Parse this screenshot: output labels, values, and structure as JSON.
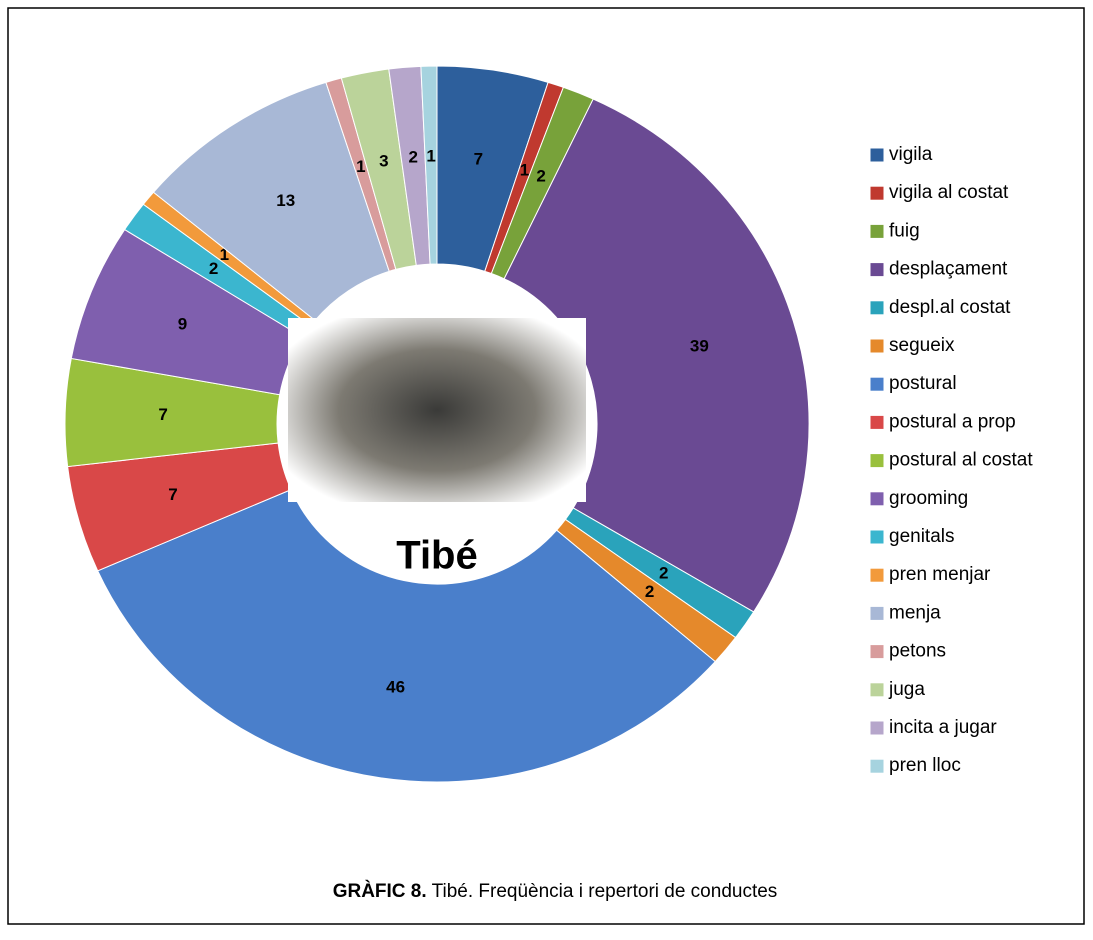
{
  "chart_data": {
    "type": "donut",
    "center_label": "Tibé",
    "caption_label": "GRÀFIC 8.",
    "caption_text": "Tibé. Freqüència i repertori de conductes",
    "legend_position": "right",
    "categories": [
      "vigila",
      "vigila al costat",
      "fuig",
      "desplaçament",
      "despl.al costat",
      "segueix",
      "postural",
      "postural a prop",
      "postural al costat",
      "grooming",
      "genitals",
      "pren menjar",
      "menja",
      "petons",
      "juga",
      "incita a jugar",
      "pren lloc"
    ],
    "values": [
      7,
      1,
      2,
      39,
      2,
      2,
      46,
      7,
      7,
      9,
      2,
      1,
      13,
      1,
      3,
      2,
      1
    ],
    "colors": [
      "#2d5f9c",
      "#c0392f",
      "#78a23a",
      "#6a4a93",
      "#2aa3bb",
      "#e5892b",
      "#4a7fcb",
      "#d94848",
      "#99c03d",
      "#7f5fae",
      "#3bb6cf",
      "#f29a3b",
      "#a8b8d6",
      "#d89c9c",
      "#bbd39a",
      "#b6a6cb",
      "#a6d3df"
    ]
  }
}
